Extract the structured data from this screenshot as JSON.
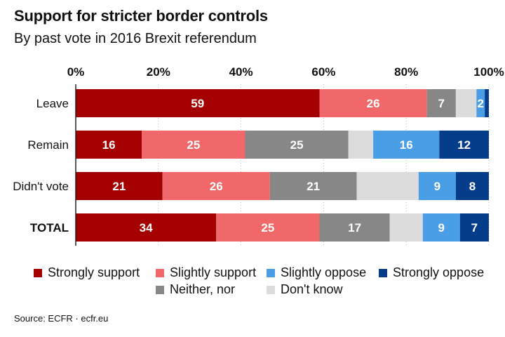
{
  "header": {
    "title": "Support for stricter border controls",
    "subtitle": "By past vote in 2016 Brexit referendum"
  },
  "source": "Source:  ECFR · ecfr.eu",
  "colors": {
    "strongly_support": "#a50000",
    "slightly_support": "#f0686a",
    "neither_nor": "#878787",
    "dont_know": "#dcdcdc",
    "slightly_oppose": "#4a9ee6",
    "strongly_oppose": "#063d8a"
  },
  "legend": [
    {
      "label": "Strongly support",
      "color": "#a50000"
    },
    {
      "label": "Slightly support",
      "color": "#f0686a"
    },
    {
      "label": "Slightly oppose",
      "color": "#4a9ee6"
    },
    {
      "label": "Strongly oppose",
      "color": "#063d8a"
    },
    {
      "label": "Neither, nor",
      "color": "#878787"
    },
    {
      "label": "Don't know",
      "color": "#dcdcdc"
    }
  ],
  "chart_data": {
    "type": "bar",
    "orientation": "horizontal",
    "stacked": true,
    "title": "Support for stricter border controls",
    "subtitle": "By past vote in 2016 Brexit referendum",
    "xlim": [
      0,
      100
    ],
    "x_ticks": [
      "0%",
      "20%",
      "40%",
      "60%",
      "80%",
      "100%"
    ],
    "x_axis_position": "top",
    "grid": true,
    "legend_position": "bottom",
    "categories": [
      "Leave",
      "Remain",
      "Didn't vote",
      "TOTAL"
    ],
    "bold_categories": [
      "TOTAL"
    ],
    "series": [
      {
        "name": "Strongly support",
        "color": "#a50000",
        "values": [
          59,
          16,
          21,
          34
        ],
        "labels": [
          "59",
          "16",
          "21",
          "34"
        ]
      },
      {
        "name": "Slightly support",
        "color": "#f0686a",
        "values": [
          26,
          25,
          26,
          25
        ],
        "labels": [
          "26",
          "25",
          "26",
          "25"
        ]
      },
      {
        "name": "Neither, nor",
        "color": "#878787",
        "values": [
          7,
          25,
          21,
          17
        ],
        "labels": [
          "7",
          "25",
          "21",
          "17"
        ]
      },
      {
        "name": "Don't know",
        "color": "#dcdcdc",
        "values": [
          5,
          6,
          15,
          8
        ],
        "labels": [
          "",
          "",
          "",
          ""
        ]
      },
      {
        "name": "Slightly oppose",
        "color": "#4a9ee6",
        "values": [
          2,
          16,
          9,
          9
        ],
        "labels": [
          "2",
          "16",
          "9",
          "9"
        ]
      },
      {
        "name": "Strongly oppose",
        "color": "#063d8a",
        "values": [
          1,
          12,
          8,
          7
        ],
        "labels": [
          "",
          "12",
          "8",
          "7"
        ]
      }
    ]
  }
}
